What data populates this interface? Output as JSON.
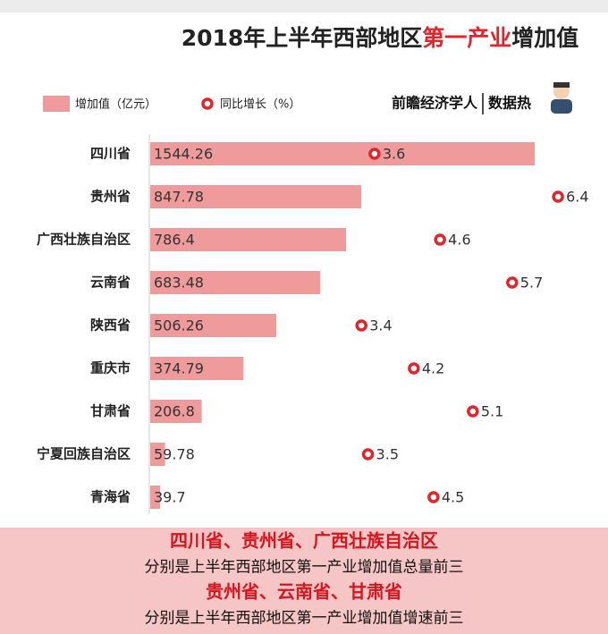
{
  "chart_data": {
    "type": "bar-dot",
    "title": [
      "2018年上半年西部地区",
      "第一产业",
      "增加值"
    ],
    "title_color": "#222222",
    "title_highlight_color": "#e3242b",
    "source": [
      "前瞻经济学人",
      "数据热"
    ],
    "categories": [
      "四川省",
      "贵州省",
      "广西壮族自治区",
      "云南省",
      "陕西省",
      "重庆市",
      "甘肃省",
      "宁夏回族自治区",
      "青海省"
    ],
    "series": [
      {
        "name": "增加值（亿元）",
        "color": "#f09b9b",
        "values": [
          1544.26,
          847.78,
          786.4,
          683.48,
          506.26,
          374.79,
          206.8,
          59.78,
          39.7
        ]
      },
      {
        "name": "同比增长（%）",
        "color": "#e3242b",
        "values": [
          3.6,
          6.4,
          4.6,
          5.7,
          3.4,
          4.2,
          5.1,
          3.5,
          4.5
        ]
      }
    ],
    "annotations": [
      {
        "text": "四川省、贵州省、广西壮族自治区",
        "color": "#d9141c"
      },
      {
        "text": "分别是上半年西部地区第一产业增加值总量前三",
        "color": "#111111"
      },
      {
        "text": "贵州省、云南省、甘肃省",
        "color": "#d9141c"
      },
      {
        "text": "分别是上半年西部地区第一产业增加值增速前三",
        "color": "#111111"
      }
    ]
  }
}
